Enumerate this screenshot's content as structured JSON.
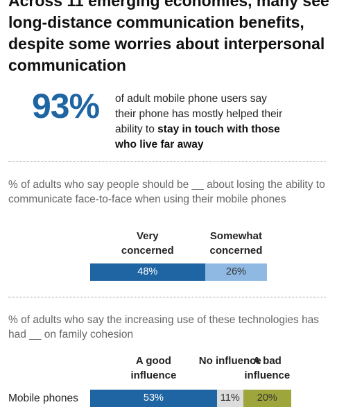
{
  "header": {
    "title": "Across 11 emerging economies, many see long-distance communication benefits, despite some worries about interpersonal communication"
  },
  "highlight": {
    "value": "93%",
    "text": "of adult mobile phone users say their phone has mostly helped their ability to ",
    "bold_text": "stay in touch with those who live far away"
  },
  "chart_data": [
    {
      "type": "bar",
      "orientation": "horizontal",
      "stacked": true,
      "subtitle": "% of adults who say people should be __ about losing the ability to communicate face-to-face when using their mobile phones",
      "categories": [
        null
      ],
      "series": [
        {
          "name": "Very concerned",
          "color": "#1f65a3",
          "values": [
            48
          ],
          "value_labels": [
            "48%"
          ]
        },
        {
          "name": "Somewhat concerned",
          "color": "#8fb9e2",
          "values": [
            26
          ],
          "value_labels": [
            "26%"
          ]
        }
      ]
    },
    {
      "type": "bar",
      "orientation": "horizontal",
      "stacked": true,
      "subtitle": "% of adults who say the increasing use of these technologies has had __ on family cohesion",
      "categories": [
        "Mobile phones"
      ],
      "series": [
        {
          "name": "A good influence",
          "color": "#1f65a3",
          "values": [
            53
          ],
          "value_labels": [
            "53%"
          ]
        },
        {
          "name": "No influence",
          "color": "#dcdcdc",
          "values": [
            11
          ],
          "value_labels": [
            "11%"
          ]
        },
        {
          "name": "A bad influence",
          "color": "#9ea53a",
          "values": [
            20
          ],
          "value_labels": [
            "20%"
          ]
        }
      ]
    }
  ]
}
